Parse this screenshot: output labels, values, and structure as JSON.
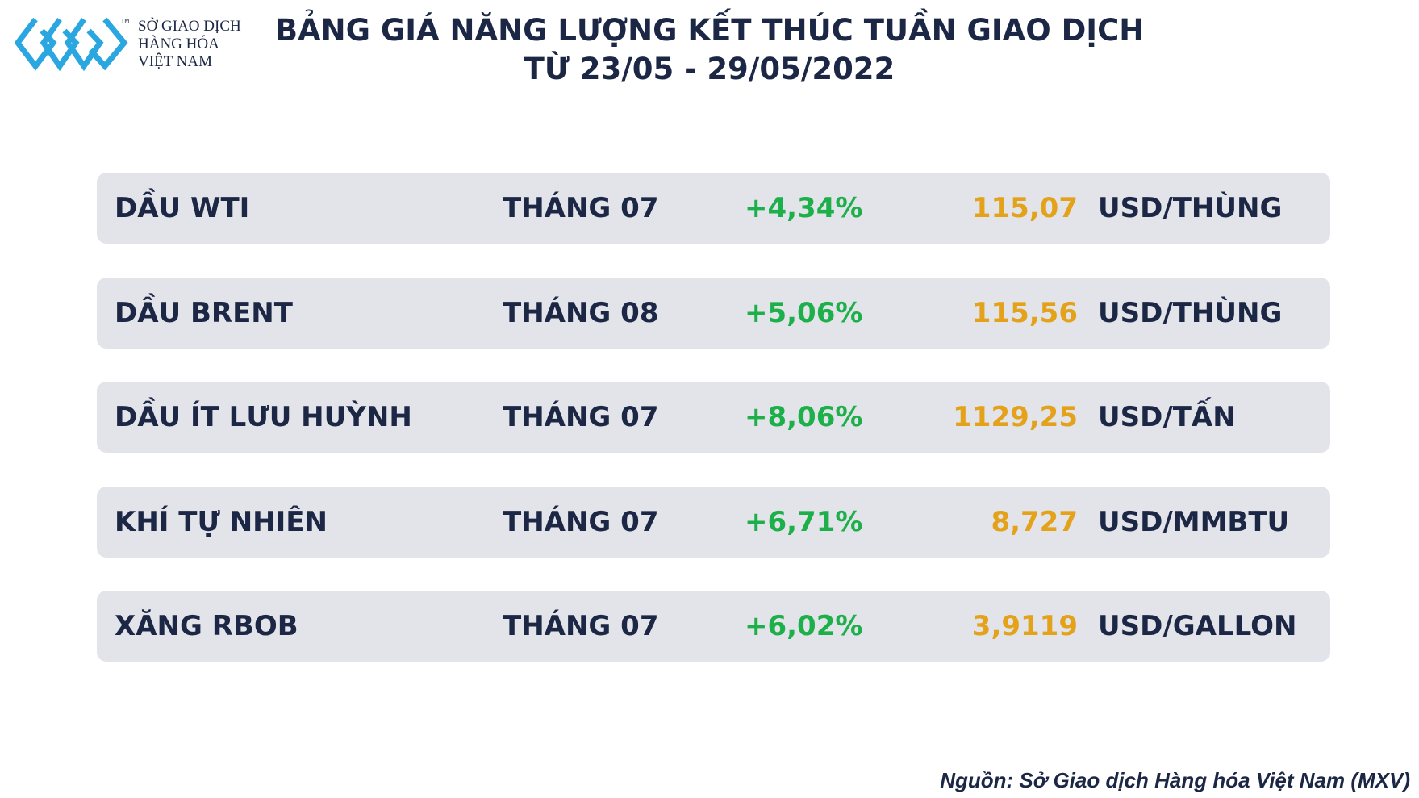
{
  "logo": {
    "lines": [
      "SỞ GIAO DỊCH",
      "HÀNG HÓA",
      "VIỆT NAM"
    ],
    "mark": "TM"
  },
  "header": {
    "title": [
      "BẢNG GIÁ NĂNG LƯỢNG KẾT THÚC TUẦN GIAO DỊCH",
      "TỪ 23/05 - 29/05/2022"
    ]
  },
  "table": {
    "rows": [
      [
        "DẦU WTI",
        "THÁNG 07",
        "+4,34%",
        "115,07",
        "USD/THÙNG"
      ],
      [
        "DẦU BRENT",
        "THÁNG 08",
        "+5,06%",
        "115,56",
        "USD/THÙNG"
      ],
      [
        "DẦU ÍT LƯU HUỲNH",
        "THÁNG 07",
        "+8,06%",
        "1129,25",
        "USD/TẤN"
      ],
      [
        "KHÍ TỰ NHIÊN",
        "THÁNG 07",
        "+6,71%",
        "8,727",
        "USD/MMBTU"
      ],
      [
        "XĂNG RBOB",
        "THÁNG 07",
        "+6,02%",
        "3,9119",
        "USD/GALLON"
      ]
    ]
  },
  "source": "Nguồn: Sở Giao dịch Hàng hóa Việt Nam (MXV)"
}
